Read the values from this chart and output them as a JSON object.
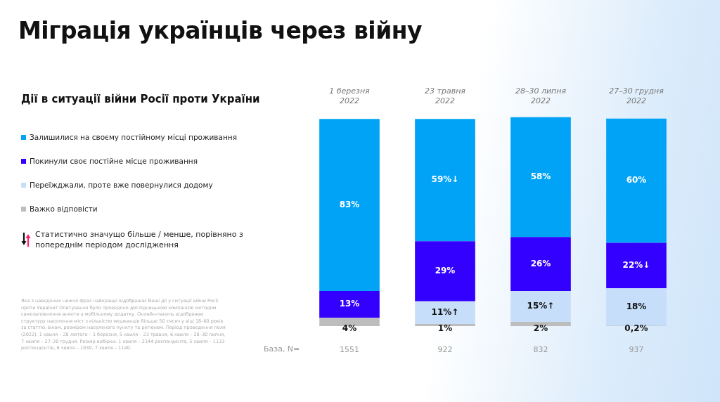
{
  "chart_data": {
    "type": "bar",
    "stacked": true,
    "title": "Міграція українців через війну",
    "subtitle": "Дії в ситуації війни Росії проти України",
    "categories": [
      "1 березня 2022",
      "23 травня 2022",
      "28–30 липня 2022",
      "27–30 грудня 2022"
    ],
    "series": [
      {
        "name": "Важко відповісти",
        "color": "#bdbdbd",
        "values": [
          4,
          1,
          2,
          0.2
        ],
        "value_labels": [
          "4%",
          "1%",
          "2%",
          "0,2%"
        ]
      },
      {
        "name": "Переїжджали, проте вже повернулися додому",
        "color": "#c6defa",
        "values": [
          null,
          11,
          15,
          18
        ],
        "value_labels": [
          null,
          "11%↑",
          "15%↑",
          "18%"
        ]
      },
      {
        "name": "Покинули своє постійне місце проживання",
        "color": "#3300ff",
        "values": [
          13,
          29,
          26,
          22
        ],
        "value_labels": [
          "13%",
          "29%",
          "26%",
          "22%↓"
        ]
      },
      {
        "name": "Залишилися на своєму постійному місці проживання",
        "color": "#00a3f5",
        "values": [
          83,
          59,
          58,
          60
        ],
        "value_labels": [
          "83%",
          "59%↓",
          "58%",
          "60%"
        ]
      }
    ],
    "legend": "left",
    "grid": false,
    "annotations": [
      "Статистично значущо більше / менше, порівняно з попереднім періодом дослідження",
      "База, N=",
      "1551",
      "922",
      "832",
      "937",
      "Яка з наведених нижче фраз найкраще відображає Ваші дії у ситуації війни Росії проти України? Опитування було проведено дослідницькою компанією методом самозаповнення анкети в мобільному додатку. Онлайн-панель відображає структуру населення міст з кількістю мешканців більше 50 тисяч у віці 18–60 років за статтю, віком, розміром населеного пункту та регіоном. Період проведення поля (2022): 1 хвиля – 28 лютого – 1 березня, 5 хвиля – 23 травня, 6 хвиля – 28–30 липня, 7 хвиля – 27–30 грудня. Розмір вибірки: 1 хвиля – 2144 респондента, 5 хвиля – 1133 респондентів, 6 хвиля – 1030, 7 хвиля – 1140."
    ]
  }
}
